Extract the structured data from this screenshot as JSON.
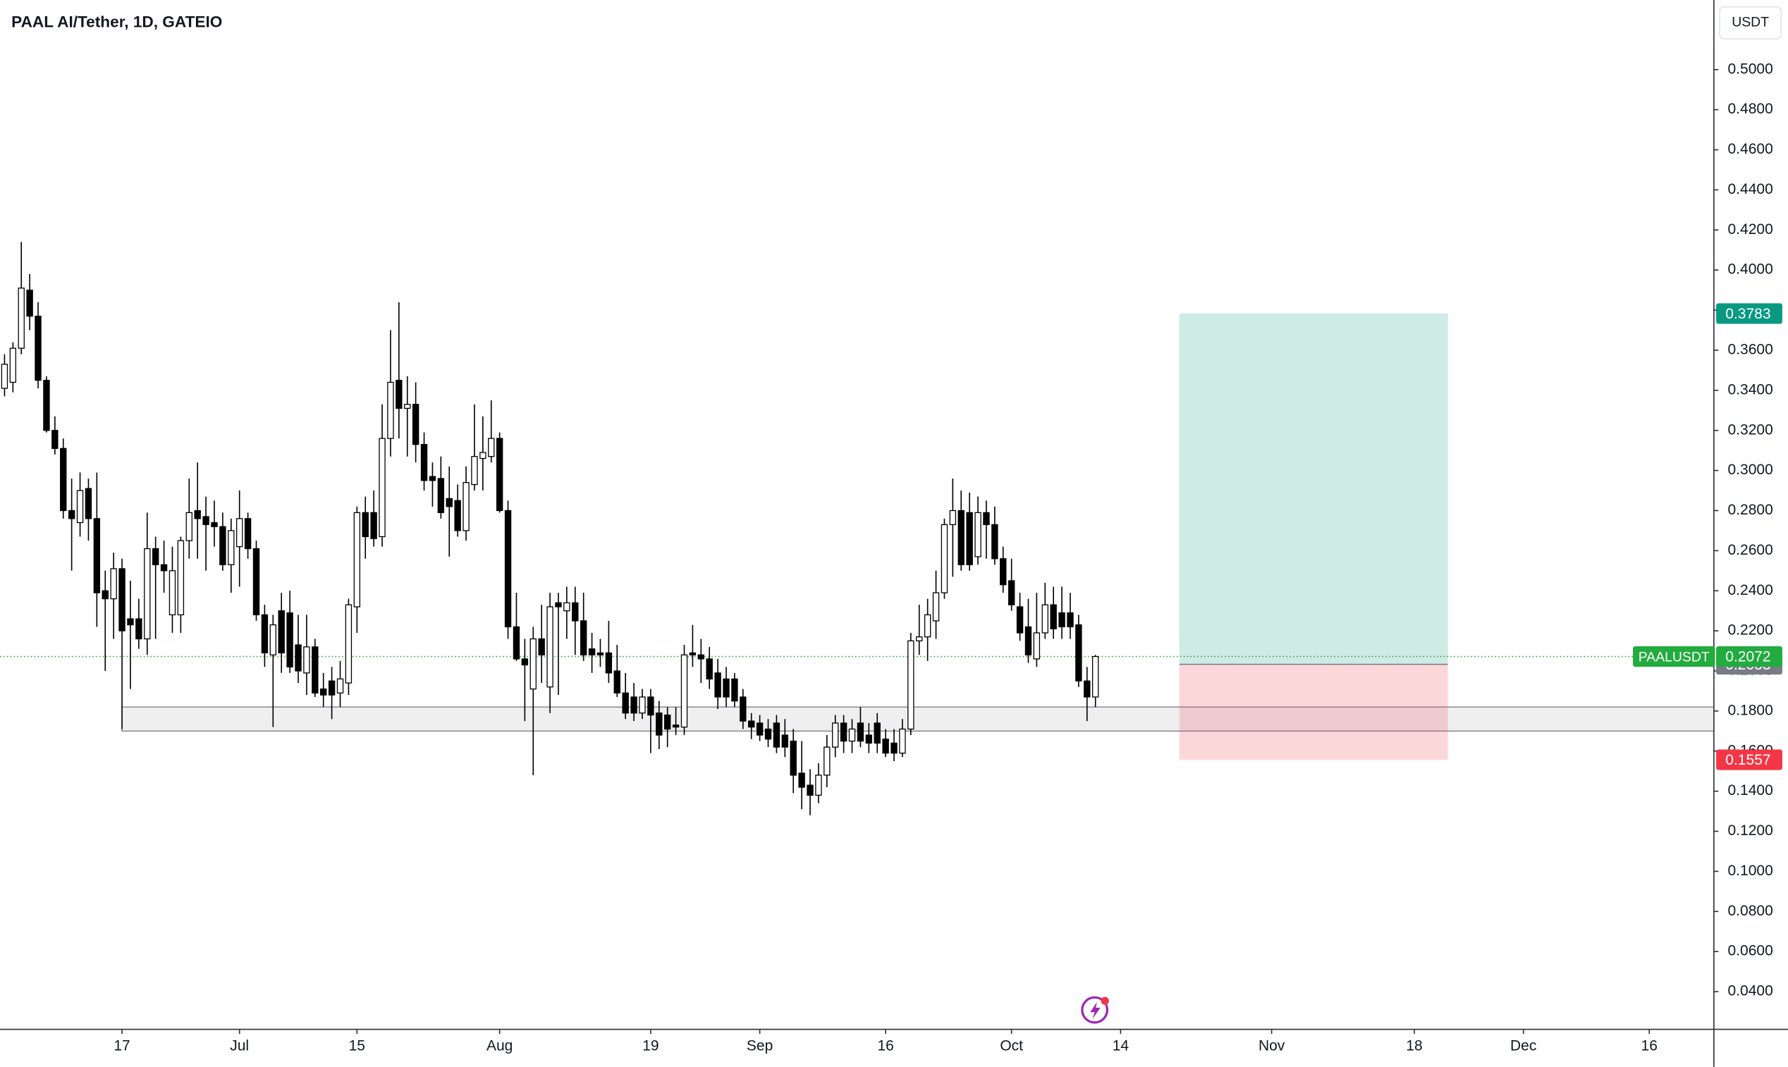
{
  "chart_data": {
    "type": "candlestick",
    "title": "PAAL AI/Tether, 1D, GATEIO",
    "currency_button": "USDT",
    "x": [
      0,
      1,
      2,
      3,
      4,
      5,
      6,
      7,
      8,
      9,
      10,
      11,
      12,
      13,
      14,
      15,
      16,
      17,
      18,
      19,
      20,
      21,
      22,
      23,
      24,
      25,
      26,
      27,
      28,
      29,
      30,
      31,
      32,
      33,
      34,
      35,
      36,
      37,
      38,
      39,
      40,
      41,
      42,
      43,
      44,
      45,
      46,
      47,
      48,
      49,
      50,
      51,
      52,
      53,
      54,
      55,
      56,
      57,
      58,
      59,
      60,
      61,
      62,
      63,
      64,
      65,
      66,
      67,
      68,
      69,
      70,
      71,
      72,
      73,
      74,
      75,
      76,
      77,
      78,
      79,
      80,
      81,
      82,
      83,
      84,
      85,
      86,
      87,
      88,
      89,
      90,
      91,
      92,
      93,
      94,
      95,
      96,
      97,
      98,
      99,
      100,
      101,
      102,
      103,
      104,
      105,
      106,
      107,
      108,
      109,
      110,
      111,
      112,
      113,
      114,
      115,
      116,
      117,
      118,
      119,
      120,
      121,
      122,
      123,
      124,
      125,
      126,
      127,
      128,
      129,
      130
    ],
    "open": [
      0.341,
      0.344,
      0.361,
      0.39,
      0.377,
      0.345,
      0.32,
      0.311,
      0.28,
      0.274,
      0.291,
      0.276,
      0.24,
      0.236,
      0.251,
      0.226,
      0.226,
      0.216,
      0.261,
      0.253,
      0.228,
      0.228,
      0.265,
      0.28,
      0.277,
      0.274,
      0.272,
      0.253,
      0.262,
      0.276,
      0.261,
      0.228,
      0.208,
      0.23,
      0.229,
      0.213,
      0.199,
      0.212,
      0.191,
      0.195,
      0.189,
      0.194,
      0.232,
      0.279,
      0.279,
      0.267,
      0.316,
      0.345,
      0.331,
      0.333,
      0.313,
      0.297,
      0.296,
      0.286,
      0.285,
      0.27,
      0.293,
      0.306,
      0.307,
      0.316,
      0.28,
      0.222,
      0.206,
      0.191,
      0.216,
      0.192,
      0.234,
      0.23,
      0.234,
      0.225,
      0.211,
      0.209,
      0.209,
      0.2,
      0.189,
      0.187,
      0.179,
      0.187,
      0.179,
      0.178,
      0.173,
      0.172,
      0.209,
      0.208,
      0.206,
      0.199,
      0.196,
      0.196,
      0.187,
      0.175,
      0.174,
      0.171,
      0.174,
      0.168,
      0.165,
      0.149,
      0.143,
      0.138,
      0.148,
      0.162,
      0.174,
      0.165,
      0.174,
      0.168,
      0.174,
      0.166,
      0.164,
      0.159,
      0.171,
      0.215,
      0.217,
      0.225,
      0.239,
      0.273,
      0.28,
      0.279,
      0.257,
      0.279,
      0.273,
      0.256,
      0.245,
      0.232,
      0.222,
      0.206,
      0.219,
      0.233,
      0.229,
      0.229,
      0.223,
      0.195,
      0.187
    ],
    "high": [
      0.358,
      0.364,
      0.414,
      0.398,
      0.384,
      0.347,
      0.327,
      0.316,
      0.296,
      0.299,
      0.296,
      0.299,
      0.25,
      0.259,
      0.256,
      0.245,
      0.236,
      0.279,
      0.267,
      0.265,
      0.262,
      0.267,
      0.296,
      0.304,
      0.287,
      0.285,
      0.279,
      0.276,
      0.29,
      0.279,
      0.265,
      0.233,
      0.228,
      0.239,
      0.24,
      0.228,
      0.228,
      0.216,
      0.199,
      0.202,
      0.205,
      0.236,
      0.282,
      0.287,
      0.29,
      0.333,
      0.37,
      0.384,
      0.347,
      0.344,
      0.319,
      0.304,
      0.307,
      0.302,
      0.293,
      0.302,
      0.333,
      0.327,
      0.335,
      0.319,
      0.285,
      0.239,
      0.216,
      0.222,
      0.233,
      0.239,
      0.239,
      0.242,
      0.242,
      0.239,
      0.219,
      0.216,
      0.225,
      0.213,
      0.199,
      0.194,
      0.191,
      0.191,
      0.185,
      0.182,
      0.182,
      0.213,
      0.223,
      0.216,
      0.212,
      0.206,
      0.202,
      0.199,
      0.191,
      0.179,
      0.178,
      0.176,
      0.178,
      0.176,
      0.171,
      0.165,
      0.151,
      0.154,
      0.168,
      0.178,
      0.178,
      0.176,
      0.182,
      0.174,
      0.179,
      0.171,
      0.171,
      0.176,
      0.219,
      0.233,
      0.236,
      0.25,
      0.276,
      0.296,
      0.29,
      0.289,
      0.287,
      0.285,
      0.282,
      0.262,
      0.256,
      0.239,
      0.236,
      0.239,
      0.244,
      0.242,
      0.242,
      0.239,
      0.228,
      0.202,
      0.208
    ],
    "low": [
      0.337,
      0.339,
      0.358,
      0.37,
      0.341,
      0.319,
      0.308,
      0.276,
      0.25,
      0.267,
      0.265,
      0.222,
      0.2,
      0.216,
      0.171,
      0.191,
      0.211,
      0.208,
      0.216,
      0.239,
      0.219,
      0.219,
      0.256,
      0.256,
      0.25,
      0.262,
      0.25,
      0.239,
      0.242,
      0.256,
      0.225,
      0.202,
      0.172,
      0.199,
      0.199,
      0.194,
      0.188,
      0.187,
      0.182,
      0.176,
      0.182,
      0.188,
      0.219,
      0.256,
      0.262,
      0.262,
      0.307,
      0.316,
      0.307,
      0.304,
      0.29,
      0.282,
      0.276,
      0.257,
      0.267,
      0.265,
      0.29,
      0.29,
      0.304,
      0.279,
      0.216,
      0.205,
      0.175,
      0.148,
      0.194,
      0.179,
      0.188,
      0.216,
      0.208,
      0.205,
      0.199,
      0.202,
      0.194,
      0.187,
      0.176,
      0.175,
      0.176,
      0.159,
      0.161,
      0.162,
      0.168,
      0.168,
      0.202,
      0.194,
      0.191,
      0.181,
      0.182,
      0.182,
      0.171,
      0.166,
      0.165,
      0.162,
      0.159,
      0.157,
      0.139,
      0.131,
      0.128,
      0.134,
      0.142,
      0.157,
      0.159,
      0.159,
      0.162,
      0.159,
      0.159,
      0.157,
      0.155,
      0.157,
      0.168,
      0.208,
      0.205,
      0.216,
      0.236,
      0.247,
      0.25,
      0.25,
      0.253,
      0.256,
      0.253,
      0.239,
      0.23,
      0.215,
      0.204,
      0.202,
      0.216,
      0.216,
      0.216,
      0.216,
      0.192,
      0.175,
      0.182
    ],
    "close": [
      0.353,
      0.361,
      0.391,
      0.377,
      0.345,
      0.32,
      0.311,
      0.28,
      0.276,
      0.29,
      0.276,
      0.239,
      0.236,
      0.251,
      0.22,
      0.223,
      0.216,
      0.261,
      0.253,
      0.25,
      0.25,
      0.265,
      0.279,
      0.276,
      0.273,
      0.272,
      0.253,
      0.27,
      0.276,
      0.261,
      0.228,
      0.209,
      0.223,
      0.209,
      0.202,
      0.2,
      0.212,
      0.189,
      0.188,
      0.188,
      0.196,
      0.233,
      0.279,
      0.267,
      0.266,
      0.316,
      0.344,
      0.331,
      0.333,
      0.313,
      0.295,
      0.295,
      0.279,
      0.282,
      0.27,
      0.294,
      0.307,
      0.309,
      0.316,
      0.28,
      0.222,
      0.206,
      0.203,
      0.216,
      0.208,
      0.232,
      0.232,
      0.234,
      0.225,
      0.208,
      0.208,
      0.208,
      0.199,
      0.189,
      0.179,
      0.179,
      0.187,
      0.178,
      0.168,
      0.171,
      0.172,
      0.208,
      0.208,
      0.206,
      0.196,
      0.187,
      0.187,
      0.185,
      0.175,
      0.172,
      0.168,
      0.166,
      0.162,
      0.162,
      0.148,
      0.142,
      0.138,
      0.148,
      0.162,
      0.174,
      0.165,
      0.171,
      0.165,
      0.164,
      0.164,
      0.159,
      0.159,
      0.171,
      0.215,
      0.217,
      0.228,
      0.239,
      0.273,
      0.28,
      0.253,
      0.253,
      0.279,
      0.273,
      0.256,
      0.243,
      0.233,
      0.219,
      0.208,
      0.219,
      0.233,
      0.221,
      0.222,
      0.222,
      0.195,
      0.187,
      0.2072
    ],
    "up_color": "#ffffff",
    "down_color": "#000000",
    "xlim": [
      -0.54,
      203.7
    ],
    "xticks": [
      {
        "value": 14,
        "label": "17"
      },
      {
        "value": 28,
        "label": "Jul"
      },
      {
        "value": 42,
        "label": "15"
      },
      {
        "value": 59,
        "label": "Aug"
      },
      {
        "value": 77,
        "label": "19"
      },
      {
        "value": 90,
        "label": "Sep"
      },
      {
        "value": 105,
        "label": "16"
      },
      {
        "value": 120,
        "label": "Oct"
      },
      {
        "value": 133,
        "label": "14"
      },
      {
        "value": 151,
        "label": "Nov"
      },
      {
        "value": 168,
        "label": "18"
      },
      {
        "value": 181,
        "label": "Dec"
      },
      {
        "value": 196,
        "label": "16"
      }
    ],
    "ylim": [
      0.0212,
      0.5347
    ],
    "yticks": [
      {
        "value": 0.04,
        "label": "0.0400"
      },
      {
        "value": 0.06,
        "label": "0.0600"
      },
      {
        "value": 0.08,
        "label": "0.0800"
      },
      {
        "value": 0.1,
        "label": "0.1000"
      },
      {
        "value": 0.12,
        "label": "0.1200"
      },
      {
        "value": 0.14,
        "label": "0.1400"
      },
      {
        "value": 0.16,
        "label": "0.1600"
      },
      {
        "value": 0.18,
        "label": "0.1800"
      },
      {
        "value": 0.2,
        "label": "0.2000"
      },
      {
        "value": 0.22,
        "label": "0.2200"
      },
      {
        "value": 0.24,
        "label": "0.2400"
      },
      {
        "value": 0.26,
        "label": "0.2600"
      },
      {
        "value": 0.28,
        "label": "0.2800"
      },
      {
        "value": 0.3,
        "label": "0.3000"
      },
      {
        "value": 0.32,
        "label": "0.3200"
      },
      {
        "value": 0.34,
        "label": "0.3400"
      },
      {
        "value": 0.36,
        "label": "0.3600"
      },
      {
        "value": 0.38,
        "label": "0.3800"
      },
      {
        "value": 0.4,
        "label": "0.4000"
      },
      {
        "value": 0.42,
        "label": "0.4200"
      },
      {
        "value": 0.44,
        "label": "0.4400"
      },
      {
        "value": 0.46,
        "label": "0.4600"
      },
      {
        "value": 0.48,
        "label": "0.4800"
      },
      {
        "value": 0.5,
        "label": "0.5000"
      }
    ],
    "last_price": {
      "name": "PAALUSDT",
      "value": 0.2072,
      "color": "#22ab3e"
    },
    "support_zone": {
      "x_start": 14,
      "top": 0.182,
      "bottom": 0.17
    },
    "position": {
      "x_start": 140,
      "x_end": 172,
      "entry": 0.2033,
      "target": 0.3783,
      "stop": 0.1557,
      "entry_color": "#787b86",
      "target_color": "#089981",
      "stop_color": "#f23645"
    }
  }
}
